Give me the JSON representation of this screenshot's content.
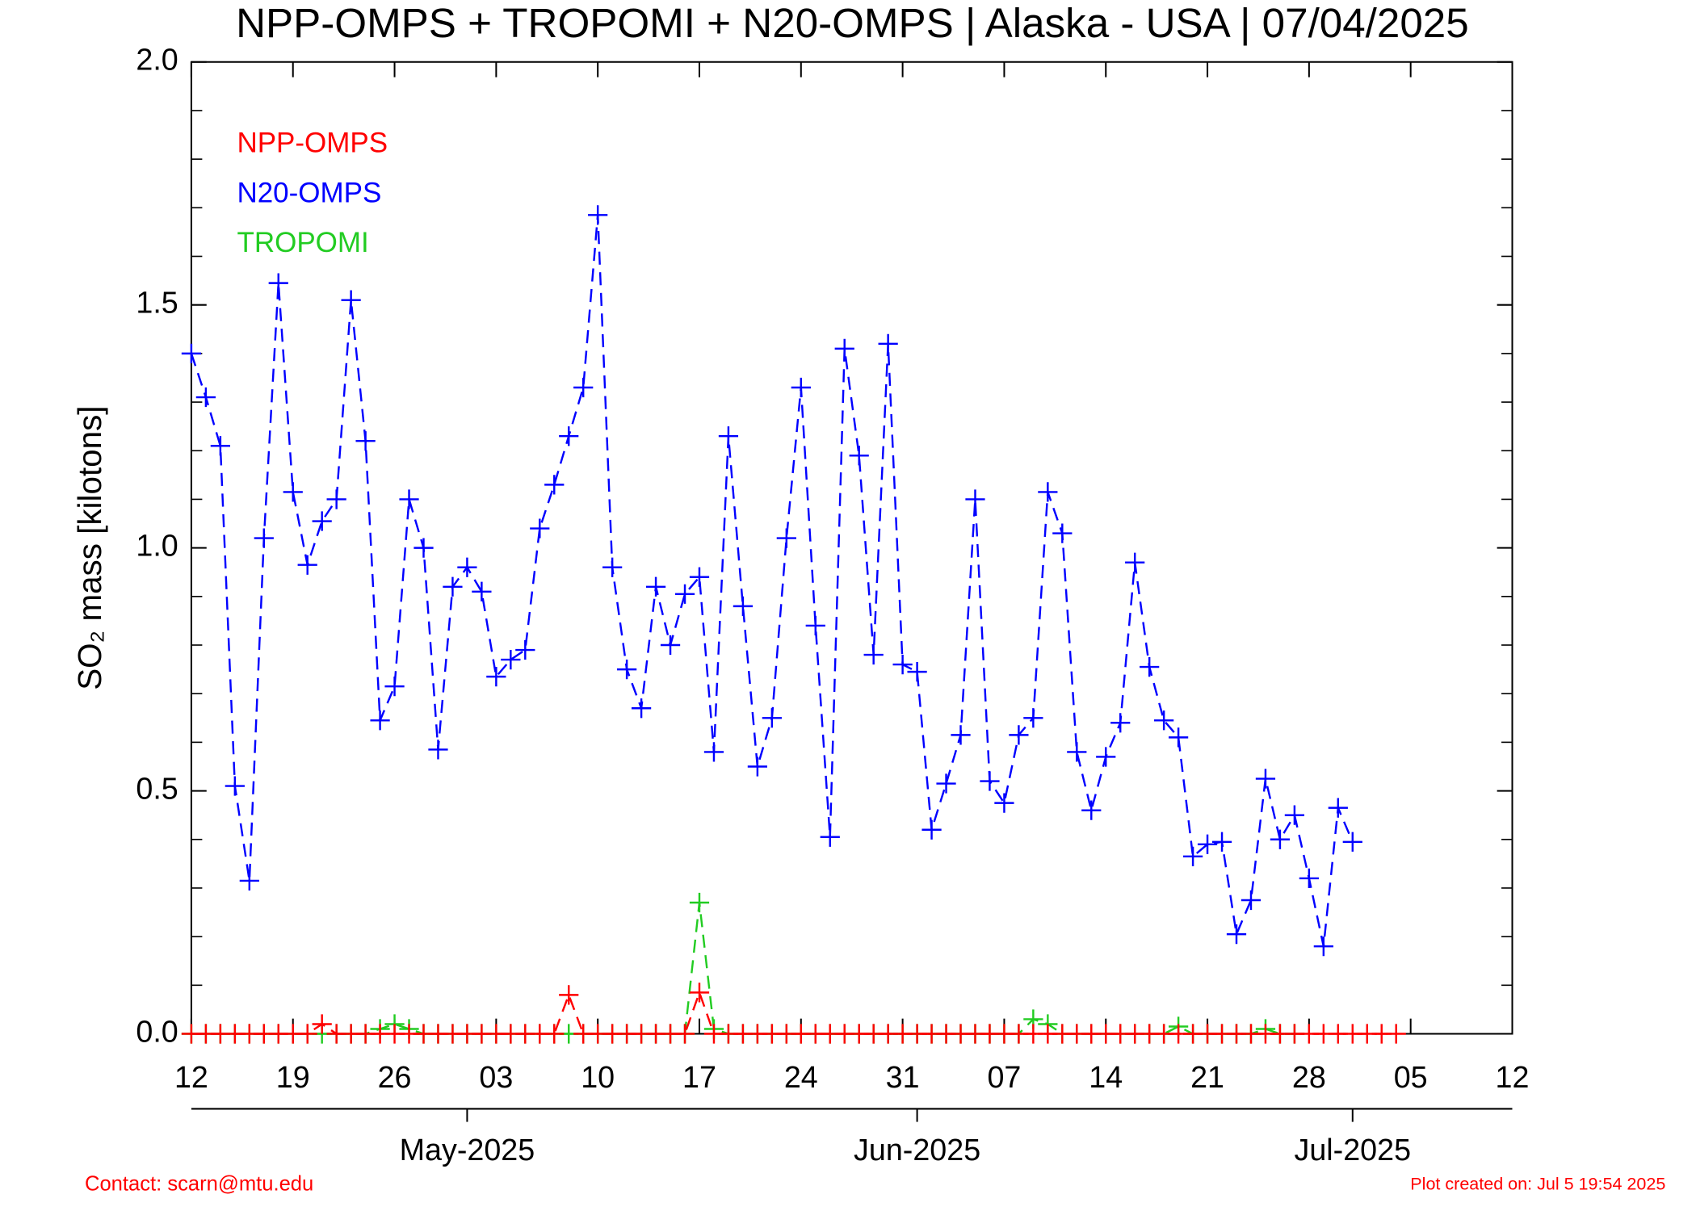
{
  "chart_data": {
    "type": "line",
    "title": "NPP-OMPS + TROPOMI + N20-OMPS | Alaska - USA | 07/04/2025",
    "ylabel": "SO₂ mass [kilotons]",
    "contact": "Contact: scarn@mtu.edu",
    "created": "Plot created on: Jul  5 19:54 2025",
    "x": [
      "2025-04-12",
      "2025-04-13",
      "2025-04-14",
      "2025-04-15",
      "2025-04-16",
      "2025-04-17",
      "2025-04-18",
      "2025-04-19",
      "2025-04-20",
      "2025-04-21",
      "2025-04-22",
      "2025-04-23",
      "2025-04-24",
      "2025-04-25",
      "2025-04-26",
      "2025-04-27",
      "2025-04-28",
      "2025-04-29",
      "2025-04-30",
      "2025-05-01",
      "2025-05-02",
      "2025-05-03",
      "2025-05-04",
      "2025-05-05",
      "2025-05-06",
      "2025-05-07",
      "2025-05-08",
      "2025-05-09",
      "2025-05-10",
      "2025-05-11",
      "2025-05-12",
      "2025-05-13",
      "2025-05-14",
      "2025-05-15",
      "2025-05-16",
      "2025-05-17",
      "2025-05-18",
      "2025-05-19",
      "2025-05-20",
      "2025-05-21",
      "2025-05-22",
      "2025-05-23",
      "2025-05-24",
      "2025-05-25",
      "2025-05-26",
      "2025-05-27",
      "2025-05-28",
      "2025-05-29",
      "2025-05-30",
      "2025-05-31",
      "2025-06-01",
      "2025-06-02",
      "2025-06-03",
      "2025-06-04",
      "2025-06-05",
      "2025-06-06",
      "2025-06-07",
      "2025-06-08",
      "2025-06-09",
      "2025-06-10",
      "2025-06-11",
      "2025-06-12",
      "2025-06-13",
      "2025-06-14",
      "2025-06-15",
      "2025-06-16",
      "2025-06-17",
      "2025-06-18",
      "2025-06-19",
      "2025-06-20",
      "2025-06-21",
      "2025-06-22",
      "2025-06-23",
      "2025-06-24",
      "2025-06-25",
      "2025-06-26",
      "2025-06-27",
      "2025-06-28",
      "2025-06-29",
      "2025-06-30",
      "2025-07-01",
      "2025-07-02",
      "2025-07-03",
      "2025-07-04"
    ],
    "series": [
      {
        "name": "NPP-OMPS",
        "color": "#ff0000",
        "values": [
          0,
          0,
          0,
          0,
          0,
          0,
          0,
          0,
          0,
          0.02,
          0,
          0,
          0,
          0,
          0,
          0,
          0,
          0,
          0,
          0,
          0,
          0,
          0,
          0,
          0,
          0,
          0.08,
          0,
          0,
          0,
          0,
          0,
          0,
          0,
          0,
          0.085,
          0,
          0,
          0,
          0,
          0,
          0,
          0,
          0,
          0,
          0,
          0,
          0,
          0,
          0,
          0,
          0,
          0,
          0,
          0,
          0,
          0,
          0,
          0,
          0,
          0,
          0,
          0,
          0,
          0,
          0,
          0,
          0,
          0,
          0,
          0,
          0,
          0,
          0,
          0,
          0,
          0,
          0,
          0,
          0,
          0,
          0,
          0,
          0
        ]
      },
      {
        "name": "N20-OMPS",
        "color": "#0000ff",
        "values": [
          1.4,
          1.31,
          1.21,
          0.51,
          0.315,
          1.02,
          1.545,
          1.115,
          0.965,
          1.055,
          1.1,
          1.51,
          1.22,
          0.645,
          0.715,
          1.1,
          1.0,
          0.585,
          0.92,
          0.96,
          0.91,
          0.735,
          0.77,
          0.79,
          1.04,
          1.13,
          1.23,
          1.33,
          1.685,
          0.96,
          0.75,
          0.67,
          0.92,
          0.8,
          0.905,
          0.94,
          0.58,
          1.23,
          0.88,
          0.55,
          0.65,
          1.02,
          1.33,
          0.84,
          0.405,
          1.41,
          1.19,
          0.78,
          1.42,
          0.76,
          0.745,
          0.42,
          0.515,
          0.615,
          1.1,
          0.52,
          0.475,
          0.615,
          0.65,
          1.115,
          1.03,
          0.58,
          0.46,
          0.57,
          0.64,
          0.97,
          0.755,
          0.645,
          0.61,
          0.365,
          0.39,
          0.395,
          0.205,
          0.275,
          0.525,
          0.4,
          0.45,
          0.32,
          0.18,
          0.465,
          0.395,
          null,
          null,
          null
        ]
      },
      {
        "name": "TROPOMI",
        "color": "#22cc22",
        "values": [
          0,
          0,
          0,
          0,
          0,
          0,
          0,
          0,
          0,
          0,
          0,
          0,
          0,
          0.01,
          0.02,
          0.01,
          0,
          0,
          0,
          0,
          0,
          0,
          0,
          0,
          0,
          0,
          0,
          0,
          0,
          0,
          0,
          0,
          0,
          0,
          0,
          0.27,
          0.01,
          0,
          0,
          0,
          0,
          0,
          0,
          0,
          0,
          0,
          0,
          0,
          0,
          0,
          0,
          0,
          0,
          0,
          0,
          0,
          0,
          0,
          0.03,
          0.02,
          0,
          0,
          0,
          0,
          0,
          0,
          0,
          0,
          0.015,
          0,
          0,
          0,
          0,
          0,
          0.01,
          0,
          0,
          null,
          null,
          null,
          null,
          null,
          null,
          null
        ]
      }
    ],
    "xlim": [
      "2025-04-12",
      "2025-07-12"
    ],
    "xticks": [
      {
        "value": "2025-04-12",
        "label": "12"
      },
      {
        "value": "2025-04-19",
        "label": "19"
      },
      {
        "value": "2025-04-26",
        "label": "26"
      },
      {
        "value": "2025-05-03",
        "label": "03"
      },
      {
        "value": "2025-05-10",
        "label": "10"
      },
      {
        "value": "2025-05-17",
        "label": "17"
      },
      {
        "value": "2025-05-24",
        "label": "24"
      },
      {
        "value": "2025-05-31",
        "label": "31"
      },
      {
        "value": "2025-06-07",
        "label": "07"
      },
      {
        "value": "2025-06-14",
        "label": "14"
      },
      {
        "value": "2025-06-21",
        "label": "21"
      },
      {
        "value": "2025-06-28",
        "label": "28"
      },
      {
        "value": "2025-07-05",
        "label": "05"
      },
      {
        "value": "2025-07-12",
        "label": "12"
      }
    ],
    "month_ticks": [
      {
        "value": "2025-05-01",
        "label": "May-2025"
      },
      {
        "value": "2025-06-01",
        "label": "Jun-2025"
      },
      {
        "value": "2025-07-01",
        "label": "Jul-2025"
      }
    ],
    "ylim": [
      0,
      2
    ],
    "yticks": [
      {
        "value": 0,
        "label": "0.0"
      },
      0.5,
      {
        "value": 1,
        "label": "1.0"
      },
      1.5,
      {
        "value": 2,
        "label": "2.0"
      }
    ],
    "yminor_ticks": [
      0.1,
      0.2,
      0.3,
      0.4,
      0.6,
      0.7,
      0.8,
      0.9,
      1.1,
      1.2,
      1.3,
      1.4,
      1.6,
      1.7,
      1.8,
      1.9
    ],
    "line_style": "dashed",
    "marker": "+"
  }
}
